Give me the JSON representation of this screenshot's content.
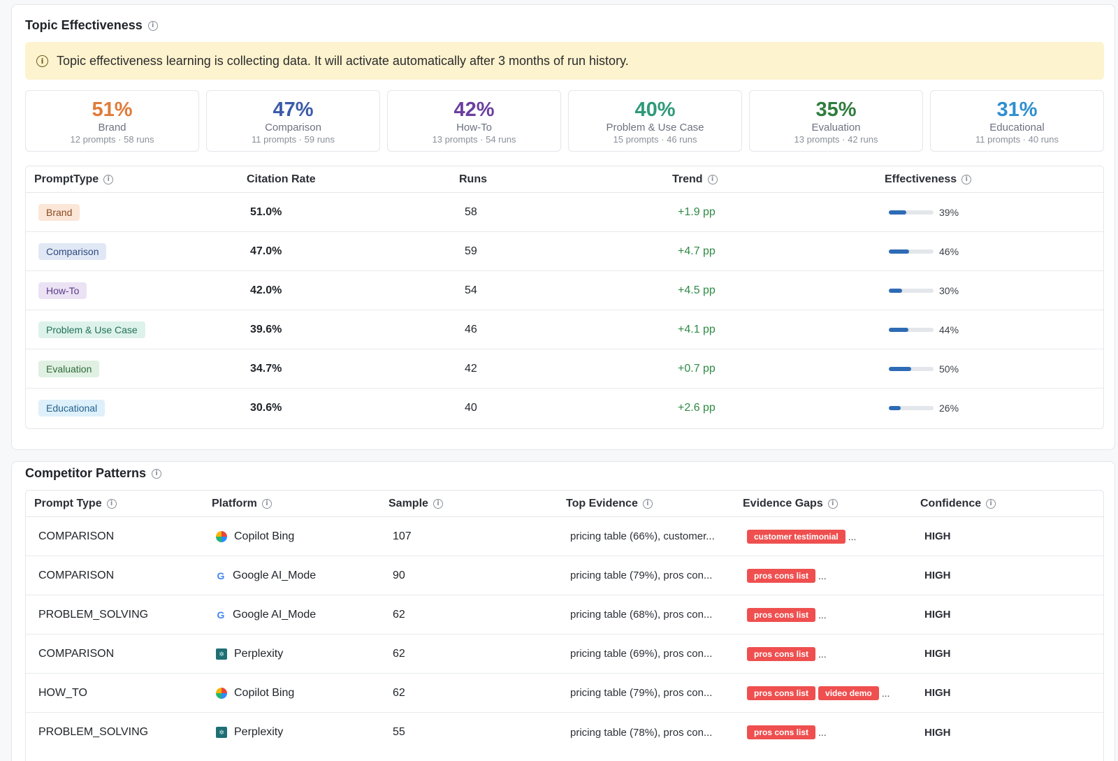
{
  "topic": {
    "title": "Topic Effectiveness",
    "notice": "Topic effectiveness learning is collecting data. It will activate automatically after 3 months of run history.",
    "stats": [
      {
        "pct": "51%",
        "label": "Brand",
        "sub": "12 prompts · 58 runs",
        "color": "#e07b39"
      },
      {
        "pct": "47%",
        "label": "Comparison",
        "sub": "11 prompts · 59 runs",
        "color": "#3b5ba9"
      },
      {
        "pct": "42%",
        "label": "How-To",
        "sub": "13 prompts · 54 runs",
        "color": "#6b3fa0"
      },
      {
        "pct": "40%",
        "label": "Problem & Use Case",
        "sub": "15 prompts · 46 runs",
        "color": "#2e9a7a"
      },
      {
        "pct": "35%",
        "label": "Evaluation",
        "sub": "13 prompts · 42 runs",
        "color": "#2f7d3e"
      },
      {
        "pct": "31%",
        "label": "Educational",
        "sub": "11 prompts · 40 runs",
        "color": "#2e8fd0"
      }
    ],
    "headers": [
      "PromptType",
      "Citation Rate",
      "Runs",
      "Trend",
      "Effectiveness"
    ],
    "rows": [
      {
        "type": "Brand",
        "rate": "51.0%",
        "runs": "58",
        "trend": "+1.9 pp",
        "eff": 39,
        "eff_label": "39%",
        "pill_bg": "#fbe6d8",
        "pill_fg": "#8a4a1f"
      },
      {
        "type": "Comparison",
        "rate": "47.0%",
        "runs": "59",
        "trend": "+4.7 pp",
        "eff": 46,
        "eff_label": "46%",
        "pill_bg": "#e1e8f5",
        "pill_fg": "#2f4a80"
      },
      {
        "type": "How-To",
        "rate": "42.0%",
        "runs": "54",
        "trend": "+4.5 pp",
        "eff": 30,
        "eff_label": "30%",
        "pill_bg": "#ebe2f4",
        "pill_fg": "#5a3a86"
      },
      {
        "type": "Problem & Use Case",
        "rate": "39.6%",
        "runs": "46",
        "trend": "+4.1 pp",
        "eff": 44,
        "eff_label": "44%",
        "pill_bg": "#ddf2ea",
        "pill_fg": "#23705a"
      },
      {
        "type": "Evaluation",
        "rate": "34.7%",
        "runs": "42",
        "trend": "+0.7 pp",
        "eff": 50,
        "eff_label": "50%",
        "pill_bg": "#e0f0e2",
        "pill_fg": "#2f6b3a"
      },
      {
        "type": "Educational",
        "rate": "30.6%",
        "runs": "40",
        "trend": "+2.6 pp",
        "eff": 26,
        "eff_label": "26%",
        "pill_bg": "#def0fa",
        "pill_fg": "#23628f"
      }
    ]
  },
  "competitor": {
    "title": "Competitor Patterns",
    "headers": [
      "Prompt Type",
      "Platform",
      "Sample",
      "Top Evidence",
      "Evidence Gaps",
      "Confidence"
    ],
    "rows": [
      {
        "type": "COMPARISON",
        "platform": "Copilot Bing",
        "icon": "copilot-icon",
        "sample": "107",
        "evidence": "pricing table (66%), customer...",
        "gaps": [
          "customer testimonial"
        ],
        "conf": "HIGH"
      },
      {
        "type": "COMPARISON",
        "platform": "Google AI_Mode",
        "icon": "google-icon",
        "sample": "90",
        "evidence": "pricing table (79%), pros con...",
        "gaps": [
          "pros cons list"
        ],
        "conf": "HIGH"
      },
      {
        "type": "PROBLEM_SOLVING",
        "platform": "Google AI_Mode",
        "icon": "google-icon",
        "sample": "62",
        "evidence": "pricing table (68%), pros con...",
        "gaps": [
          "pros cons list"
        ],
        "conf": "HIGH"
      },
      {
        "type": "COMPARISON",
        "platform": "Perplexity",
        "icon": "perplexity-icon",
        "sample": "62",
        "evidence": "pricing table (69%), pros con...",
        "gaps": [
          "pros cons list"
        ],
        "conf": "HIGH"
      },
      {
        "type": "HOW_TO",
        "platform": "Copilot Bing",
        "icon": "copilot-icon",
        "sample": "62",
        "evidence": "pricing table (79%), pros con...",
        "gaps": [
          "pros cons list",
          "video demo"
        ],
        "conf": "HIGH"
      },
      {
        "type": "PROBLEM_SOLVING",
        "platform": "Perplexity",
        "icon": "perplexity-icon",
        "sample": "55",
        "evidence": "pricing table (78%), pros con...",
        "gaps": [
          "pros cons list"
        ],
        "conf": "HIGH"
      }
    ],
    "ellipsis": "..."
  }
}
